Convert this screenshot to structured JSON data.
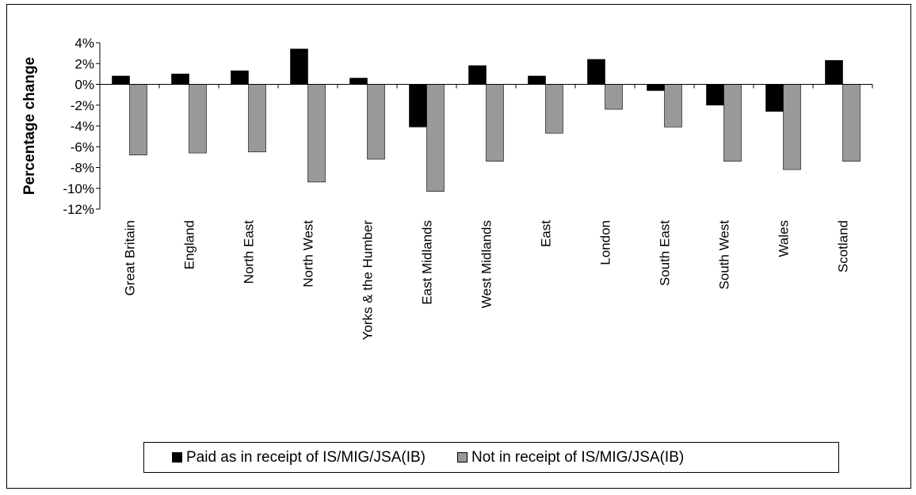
{
  "chart_data": {
    "type": "bar",
    "title": "",
    "xlabel": "",
    "ylabel": "Percentage change",
    "ylim": [
      -12,
      4
    ],
    "yticks": [
      4,
      2,
      0,
      -2,
      -4,
      -6,
      -8,
      -10,
      -12
    ],
    "ytick_labels": [
      "4%",
      "2%",
      "0%",
      "-2%",
      "-4%",
      "-6%",
      "-8%",
      "-10%",
      "-12%"
    ],
    "categories": [
      "Great Britain",
      "England",
      "North East",
      "North West",
      "Yorks & the Humber",
      "East Midlands",
      "West Midlands",
      "East",
      "London",
      "South East",
      "South West",
      "Wales",
      "Scotland"
    ],
    "series": [
      {
        "name": "Paid as in receipt of IS/MIG/JSA(IB)",
        "color": "#000000",
        "values": [
          0.8,
          1.0,
          1.3,
          3.4,
          0.6,
          -4.1,
          1.8,
          0.8,
          2.4,
          -0.6,
          -2.0,
          -2.6,
          2.3
        ]
      },
      {
        "name": "Not in receipt of IS/MIG/JSA(IB)",
        "color": "#999999",
        "values": [
          -6.8,
          -6.6,
          -6.5,
          -9.4,
          -7.2,
          -10.3,
          -7.4,
          -4.7,
          -2.4,
          -4.1,
          -7.4,
          -8.2,
          -7.4
        ]
      }
    ],
    "grid": false,
    "legend_position": "bottom"
  }
}
